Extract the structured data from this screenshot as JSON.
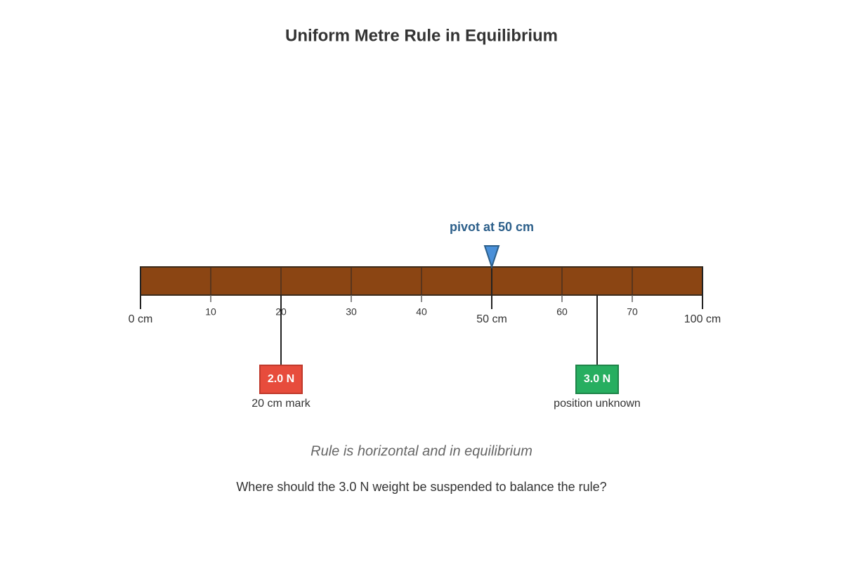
{
  "title": "Uniform Metre Rule in Equilibrium",
  "pivot": {
    "label": "pivot at 50 cm"
  },
  "scale": {
    "major_labels": [
      "0 cm",
      "50 cm",
      "100 cm"
    ],
    "minor_labels": [
      "10",
      "20",
      "30",
      "40",
      "60",
      "70"
    ]
  },
  "weights": [
    {
      "label": "2.0 N",
      "caption": "20 cm mark"
    },
    {
      "label": "3.0 N",
      "caption": "position unknown"
    }
  ],
  "note": "Rule is horizontal and in equilibrium",
  "question": "Where should the 3.0 N weight be suspended to balance the rule?"
}
